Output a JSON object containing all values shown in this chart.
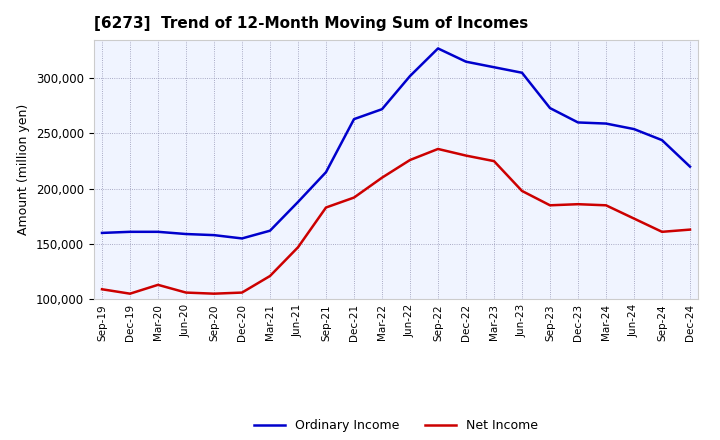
{
  "title": "[6273]  Trend of 12-Month Moving Sum of Incomes",
  "ylabel": "Amount (million yen)",
  "ylim": [
    100000,
    335000
  ],
  "yticks": [
    100000,
    150000,
    200000,
    250000,
    300000
  ],
  "background_color": "#ffffff",
  "plot_bg_color": "#f0f4ff",
  "ordinary_income_color": "#0000cc",
  "net_income_color": "#cc0000",
  "x_labels": [
    "Sep-19",
    "Dec-19",
    "Mar-20",
    "Jun-20",
    "Sep-20",
    "Dec-20",
    "Mar-21",
    "Jun-21",
    "Sep-21",
    "Dec-21",
    "Mar-22",
    "Jun-22",
    "Sep-22",
    "Dec-22",
    "Mar-23",
    "Jun-23",
    "Sep-23",
    "Dec-23",
    "Mar-24",
    "Jun-24",
    "Sep-24",
    "Dec-24"
  ],
  "ordinary_income": [
    160000,
    161000,
    161000,
    159000,
    158000,
    155000,
    162000,
    188000,
    215000,
    263000,
    272000,
    302000,
    327000,
    315000,
    310000,
    305000,
    273000,
    260000,
    259000,
    254000,
    244000,
    220000
  ],
  "net_income": [
    109000,
    105000,
    113000,
    106000,
    105000,
    106000,
    121000,
    147000,
    183000,
    192000,
    210000,
    226000,
    236000,
    230000,
    225000,
    198000,
    185000,
    186000,
    185000,
    173000,
    161000,
    163000
  ]
}
